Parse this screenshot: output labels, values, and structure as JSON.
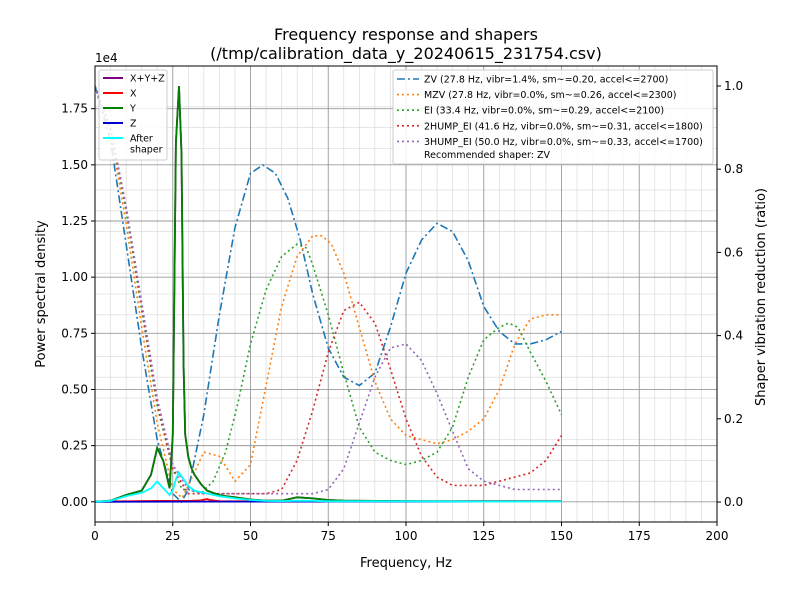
{
  "chart_data": {
    "type": "line",
    "title_line1": "Frequency response and shapers",
    "title_line2": "(/tmp/calibration_data_y_20240615_231754.csv)",
    "xlabel": "Frequency, Hz",
    "ylabel_left": "Power spectral density",
    "ylabel_right": "Shaper vibration reduction (ratio)",
    "left_scale_label": "1e4",
    "xlim": [
      0,
      200
    ],
    "ylim_left": [
      -0.09,
      1.94
    ],
    "ylim_right": [
      -0.048,
      1.048
    ],
    "x_ticks": [
      0,
      25,
      50,
      75,
      100,
      125,
      150,
      175,
      200
    ],
    "y_left_ticks": [
      "0.00",
      "0.25",
      "0.50",
      "0.75",
      "1.00",
      "1.25",
      "1.50",
      "1.75"
    ],
    "y_right_ticks": [
      "0.0",
      "0.2",
      "0.4",
      "0.6",
      "0.8",
      "1.0"
    ],
    "grid": "major and minor",
    "psd_series": [
      {
        "name": "X+Y+Z",
        "color": "#800080",
        "x": [
          0,
          5,
          10,
          15,
          18,
          20,
          22,
          24,
          25,
          26,
          27,
          27.8,
          28.5,
          29,
          30,
          31,
          32,
          34,
          36,
          38,
          40,
          42,
          45,
          50,
          55,
          60,
          65,
          70,
          75,
          80,
          90,
          100,
          110,
          120,
          130,
          140,
          150
        ],
        "y": [
          0,
          0.005,
          0.03,
          0.05,
          0.12,
          0.24,
          0.18,
          0.06,
          0.3,
          1.6,
          1.85,
          1.55,
          0.6,
          0.3,
          0.2,
          0.15,
          0.12,
          0.08,
          0.05,
          0.04,
          0.03,
          0.025,
          0.02,
          0.01,
          0.005,
          0.005,
          0.02,
          0.015,
          0.008,
          0.005,
          0.004,
          0.003,
          0.002,
          0.002,
          0.002,
          0.002,
          0.002
        ]
      },
      {
        "name": "X",
        "color": "#ff0000",
        "x": [
          0,
          5,
          10,
          20,
          30,
          34,
          36,
          37,
          40,
          45,
          50,
          60,
          70,
          80,
          100,
          120,
          150
        ],
        "y": [
          0,
          0.002,
          0.002,
          0.004,
          0.004,
          0.006,
          0.012,
          0.008,
          0.003,
          0.002,
          0.002,
          0.002,
          0.002,
          0.001,
          0.001,
          0.001,
          0.001
        ]
      },
      {
        "name": "Y",
        "color": "#008000",
        "x": [
          0,
          5,
          10,
          15,
          18,
          20,
          22,
          24,
          25,
          26,
          27,
          27.8,
          28.5,
          29,
          30,
          31,
          32,
          34,
          36,
          38,
          40,
          42,
          45,
          50,
          55,
          60,
          65,
          70,
          75,
          80,
          90,
          100,
          110,
          120,
          130,
          140,
          150
        ],
        "y": [
          0,
          0.005,
          0.03,
          0.05,
          0.12,
          0.24,
          0.18,
          0.06,
          0.3,
          1.6,
          1.85,
          1.55,
          0.6,
          0.3,
          0.2,
          0.15,
          0.12,
          0.08,
          0.05,
          0.04,
          0.03,
          0.025,
          0.02,
          0.01,
          0.005,
          0.005,
          0.02,
          0.015,
          0.008,
          0.005,
          0.004,
          0.003,
          0.002,
          0.002,
          0.002,
          0.002,
          0.002
        ]
      },
      {
        "name": "Z",
        "color": "#0000cd",
        "x": [
          0,
          30,
          60,
          90,
          120,
          150
        ],
        "y": [
          0,
          0.001,
          0.001,
          0.001,
          0.001,
          0.001
        ]
      },
      {
        "name": "After\nshaper",
        "color": "#00ffff",
        "x": [
          0,
          5,
          10,
          15,
          18,
          20,
          22,
          24,
          25,
          26,
          27,
          28,
          30,
          32,
          35,
          40,
          45,
          50,
          55,
          60,
          65,
          70,
          75,
          80,
          100,
          125,
          150
        ],
        "y": [
          0,
          0.004,
          0.025,
          0.04,
          0.06,
          0.09,
          0.06,
          0.03,
          0.05,
          0.1,
          0.13,
          0.11,
          0.07,
          0.05,
          0.04,
          0.025,
          0.015,
          0.008,
          0.004,
          0.003,
          0.005,
          0.004,
          0.002,
          0.002,
          0.002,
          0.001,
          0.001
        ]
      }
    ],
    "shaper_series": [
      {
        "name": "ZV (27.8 Hz, vibr=1.4%, sm~=0.20, accel<=2700)",
        "color": "#1f77b4",
        "dash": "dashdot",
        "x": [
          0,
          5,
          10,
          15,
          20,
          25,
          27.8,
          30,
          35,
          40,
          45,
          50,
          54,
          58,
          62,
          66,
          70,
          75,
          80,
          85,
          90,
          95,
          100,
          105,
          110,
          115,
          120,
          125,
          130,
          135,
          140,
          145,
          150
        ],
        "y": [
          1.0,
          0.87,
          0.62,
          0.37,
          0.15,
          0.02,
          0.0,
          0.03,
          0.21,
          0.45,
          0.66,
          0.79,
          0.81,
          0.79,
          0.73,
          0.63,
          0.5,
          0.37,
          0.3,
          0.28,
          0.31,
          0.42,
          0.55,
          0.63,
          0.67,
          0.65,
          0.58,
          0.47,
          0.41,
          0.38,
          0.38,
          0.39,
          0.41
        ]
      },
      {
        "name": "MZV (27.8 Hz, vibr=0.0%, sm~=0.26, accel<=2300)",
        "color": "#ff7f0e",
        "dash": "dot",
        "x": [
          0,
          5,
          10,
          15,
          20,
          25,
          28,
          30,
          35,
          40,
          45,
          50,
          55,
          60,
          65,
          70,
          73,
          76,
          80,
          85,
          90,
          95,
          100,
          105,
          110,
          115,
          120,
          125,
          130,
          135,
          140,
          145,
          150
        ],
        "y": [
          1.0,
          0.89,
          0.67,
          0.42,
          0.19,
          0.03,
          0.01,
          0.04,
          0.12,
          0.11,
          0.05,
          0.09,
          0.28,
          0.47,
          0.59,
          0.64,
          0.64,
          0.62,
          0.55,
          0.42,
          0.29,
          0.2,
          0.16,
          0.15,
          0.14,
          0.15,
          0.17,
          0.2,
          0.27,
          0.38,
          0.44,
          0.45,
          0.45
        ]
      },
      {
        "name": "EI (33.4 Hz, vibr=0.0%, sm~=0.29, accel<=2100)",
        "color": "#2ca02c",
        "dash": "dot",
        "x": [
          0,
          5,
          10,
          15,
          20,
          25,
          28,
          30,
          34,
          38,
          42,
          46,
          50,
          55,
          60,
          65,
          68,
          70,
          75,
          80,
          85,
          90,
          95,
          100,
          105,
          110,
          115,
          120,
          125,
          130,
          133,
          136,
          140,
          145,
          150
        ],
        "y": [
          1.0,
          0.9,
          0.7,
          0.46,
          0.23,
          0.08,
          0.03,
          0.03,
          0.02,
          0.05,
          0.12,
          0.24,
          0.38,
          0.51,
          0.59,
          0.62,
          0.61,
          0.57,
          0.45,
          0.31,
          0.18,
          0.12,
          0.1,
          0.09,
          0.1,
          0.12,
          0.18,
          0.3,
          0.39,
          0.42,
          0.43,
          0.42,
          0.36,
          0.29,
          0.21
        ]
      },
      {
        "name": "2HUMP_EI (41.6 Hz, vibr=0.0%, sm~=0.31, accel<=1800)",
        "color": "#d62728",
        "dash": "dot",
        "x": [
          0,
          5,
          10,
          15,
          20,
          25,
          30,
          35,
          40,
          45,
          50,
          55,
          60,
          65,
          70,
          75,
          80,
          85,
          90,
          95,
          100,
          105,
          110,
          115,
          120,
          125,
          130,
          135,
          140,
          145,
          150
        ],
        "y": [
          1.0,
          0.9,
          0.71,
          0.47,
          0.24,
          0.08,
          0.02,
          0.02,
          0.02,
          0.02,
          0.02,
          0.02,
          0.03,
          0.1,
          0.22,
          0.36,
          0.46,
          0.48,
          0.43,
          0.32,
          0.2,
          0.11,
          0.06,
          0.04,
          0.04,
          0.04,
          0.05,
          0.06,
          0.07,
          0.1,
          0.16
        ]
      },
      {
        "name": "3HUMP_EI (50.0 Hz, vibr=0.0%, sm~=0.33, accel<=1700)",
        "color": "#9467bd",
        "dash": "dot",
        "x": [
          0,
          5,
          10,
          15,
          20,
          25,
          30,
          35,
          40,
          45,
          50,
          55,
          60,
          65,
          70,
          75,
          80,
          85,
          90,
          95,
          100,
          105,
          110,
          115,
          120,
          125,
          130,
          135,
          140,
          145,
          150
        ],
        "y": [
          1.0,
          0.9,
          0.71,
          0.48,
          0.25,
          0.09,
          0.03,
          0.02,
          0.02,
          0.02,
          0.02,
          0.02,
          0.02,
          0.02,
          0.02,
          0.03,
          0.08,
          0.19,
          0.3,
          0.37,
          0.38,
          0.34,
          0.26,
          0.17,
          0.08,
          0.05,
          0.04,
          0.03,
          0.03,
          0.03,
          0.03
        ]
      }
    ],
    "recommendation": "Recommended shaper: ZV",
    "left_legend_placement": "top-left",
    "right_legend_placement": "top-right"
  }
}
